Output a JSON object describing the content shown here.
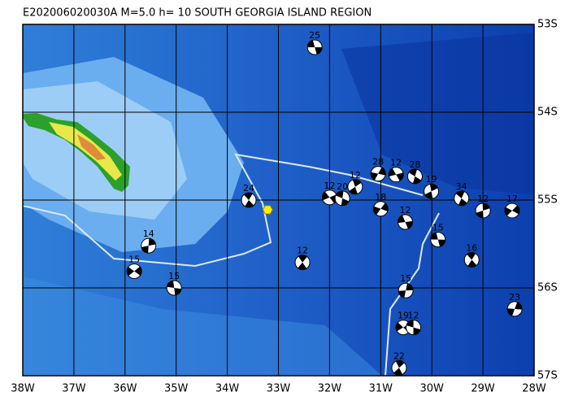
{
  "chart_data": {
    "type": "map",
    "title": "E202006020030A M=5.0 h= 10 SOUTH GEORGIA ISLAND REGION",
    "xlim": [
      -38,
      -28
    ],
    "ylim": [
      -57,
      -53
    ],
    "xticks": [
      {
        "value": -38,
        "label": "38W"
      },
      {
        "value": -37,
        "label": "37W"
      },
      {
        "value": -36,
        "label": "36W"
      },
      {
        "value": -35,
        "label": "35W"
      },
      {
        "value": -34,
        "label": "34W"
      },
      {
        "value": -33,
        "label": "33W"
      },
      {
        "value": -32,
        "label": "32W"
      },
      {
        "value": -31,
        "label": "31W"
      },
      {
        "value": -30,
        "label": "30W"
      },
      {
        "value": -29,
        "label": "29W"
      },
      {
        "value": -28,
        "label": "28W"
      }
    ],
    "yticks": [
      {
        "value": -53,
        "label": "53S"
      },
      {
        "value": -54,
        "label": "54S"
      },
      {
        "value": -55,
        "label": "55S"
      },
      {
        "value": -56,
        "label": "56S"
      },
      {
        "value": -57,
        "label": "57S"
      }
    ],
    "epicenter": {
      "lon": -33.21,
      "lat": -55.11,
      "color": "#ffee00"
    },
    "events": [
      {
        "label": "25",
        "lon": -32.29,
        "lat": -53.26
      },
      {
        "label": "24",
        "lon": -33.58,
        "lat": -55.0
      },
      {
        "label": "14",
        "lon": -35.54,
        "lat": -55.52
      },
      {
        "label": "15",
        "lon": -35.82,
        "lat": -55.81
      },
      {
        "label": "15",
        "lon": -35.04,
        "lat": -56.0
      },
      {
        "label": "12",
        "lon": -32.53,
        "lat": -55.71
      },
      {
        "label": "15",
        "lon": -30.51,
        "lat": -56.03
      },
      {
        "label": "19",
        "lon": -30.56,
        "lat": -56.45
      },
      {
        "label": "12",
        "lon": -30.36,
        "lat": -56.45
      },
      {
        "label": "22",
        "lon": -30.64,
        "lat": -56.91
      },
      {
        "label": "23",
        "lon": -28.38,
        "lat": -56.24
      },
      {
        "label": "12",
        "lon": -32.0,
        "lat": -54.97
      },
      {
        "label": "20",
        "lon": -31.75,
        "lat": -54.98
      },
      {
        "label": "12",
        "lon": -31.5,
        "lat": -54.85
      },
      {
        "label": "28",
        "lon": -31.05,
        "lat": -54.7
      },
      {
        "label": "12",
        "lon": -30.7,
        "lat": -54.71
      },
      {
        "label": "28",
        "lon": -30.33,
        "lat": -54.73
      },
      {
        "label": "19",
        "lon": -30.01,
        "lat": -54.9
      },
      {
        "label": "18",
        "lon": -31.0,
        "lat": -55.1
      },
      {
        "label": "12",
        "lon": -30.52,
        "lat": -55.25
      },
      {
        "label": "34",
        "lon": -29.42,
        "lat": -54.98
      },
      {
        "label": "12",
        "lon": -29.0,
        "lat": -55.12
      },
      {
        "label": "17",
        "lon": -28.43,
        "lat": -55.12
      },
      {
        "label": "15",
        "lon": -29.88,
        "lat": -55.45
      },
      {
        "label": "16",
        "lon": -29.22,
        "lat": -55.68
      }
    ]
  }
}
